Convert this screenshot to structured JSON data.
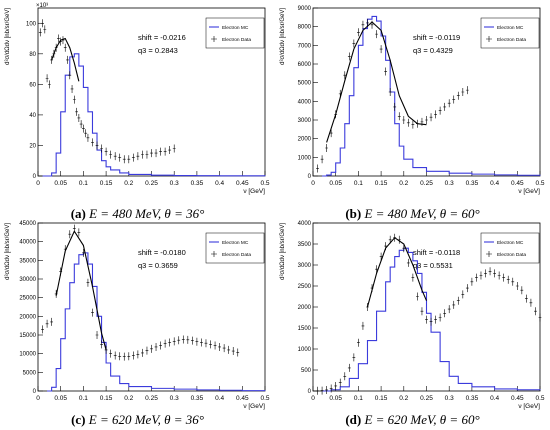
{
  "figure": {
    "legend": {
      "mc_label": "Electron MC",
      "data_label": "Electron Data"
    },
    "ylabel": "d²σ/dΩdν [nb/sr/GeV]",
    "xlabel": "ν [GeV]",
    "colors": {
      "mc": "#3b3bdc",
      "data": "#000000",
      "frame": "#000000"
    }
  },
  "panels": [
    {
      "caption": {
        "letter": "(a)",
        "text": "E = 480 MeV, θ = 36°"
      },
      "shift_text": "shift = -0.0216",
      "q3_text": "q3 = 0.2843",
      "exponent": "×10³"
    },
    {
      "caption": {
        "letter": "(b)",
        "text": "E = 480 MeV, θ = 60°"
      },
      "shift_text": "shift = -0.0119",
      "q3_text": "q3 = 0.4329",
      "exponent": ""
    },
    {
      "caption": {
        "letter": "(c)",
        "text": "E = 620 MeV, θ = 36°"
      },
      "shift_text": "shift = -0.0180",
      "q3_text": "q3 = 0.3659",
      "exponent": ""
    },
    {
      "caption": {
        "letter": "(d)",
        "text": "E = 620 MeV, θ = 60°"
      },
      "shift_text": "shift = -0.0118",
      "q3_text": "q3 = 0.5531",
      "exponent": ""
    }
  ],
  "chart_data": [
    {
      "type": "line",
      "ylim": [
        0,
        110
      ],
      "xlim": [
        0,
        0.5
      ],
      "xticks": [
        "0",
        "0.05",
        "0.1",
        "0.15",
        "0.2",
        "0.25",
        "0.3",
        "0.35",
        "0.4",
        "0.45",
        "0.5"
      ],
      "yticks": [
        0,
        20,
        40,
        60,
        80,
        100
      ],
      "series": [
        {
          "name": "Electron MC",
          "x": [
            0.01,
            0.02,
            0.03,
            0.04,
            0.05,
            0.06,
            0.07,
            0.08,
            0.09,
            0.1,
            0.11,
            0.12,
            0.13,
            0.14,
            0.15,
            0.16,
            0.18,
            0.2,
            0.25,
            0.3,
            0.35,
            0.4,
            0.45,
            0.5
          ],
          "values": [
            0,
            0,
            2,
            15,
            42,
            66,
            78,
            80,
            72,
            58,
            42,
            28,
            17,
            10,
            6,
            4,
            2,
            1,
            0.5,
            0.3,
            0.2,
            0.1,
            0.1,
            0
          ]
        },
        {
          "name": "Electron Data",
          "x": [
            0.005,
            0.01,
            0.015,
            0.02,
            0.025,
            0.03,
            0.035,
            0.04,
            0.045,
            0.05,
            0.055,
            0.06,
            0.065,
            0.07,
            0.075,
            0.08,
            0.085,
            0.09,
            0.095,
            0.1,
            0.105,
            0.11,
            0.12,
            0.13,
            0.14,
            0.15,
            0.16,
            0.17,
            0.18,
            0.19,
            0.2,
            0.21,
            0.22,
            0.23,
            0.24,
            0.25,
            0.26,
            0.27,
            0.28,
            0.29,
            0.3
          ],
          "values": [
            94,
            100,
            96,
            64,
            60,
            76,
            80,
            84,
            90,
            88,
            89,
            84,
            76,
            66,
            57,
            50,
            42,
            38,
            34,
            31,
            28,
            25,
            22,
            20,
            18,
            16,
            14,
            13,
            12,
            11,
            11,
            12,
            13,
            14,
            14,
            15,
            15,
            16,
            16,
            17,
            18
          ]
        },
        {
          "name": "",
          "x": [
            0.03,
            0.04,
            0.05,
            0.06,
            0.07,
            0.08,
            0.09
          ],
          "values": [
            76,
            84,
            89,
            90,
            84,
            74,
            62
          ]
        }
      ]
    },
    {
      "type": "line",
      "ylim": [
        0,
        9000
      ],
      "xlim": [
        0,
        0.5
      ],
      "xticks": [
        "0",
        "0.05",
        "0.1",
        "0.15",
        "0.2",
        "0.25",
        "0.3",
        "0.35",
        "0.4",
        "0.45",
        "0.5"
      ],
      "yticks": [
        0,
        1000,
        2000,
        3000,
        4000,
        5000,
        6000,
        7000,
        8000,
        9000
      ],
      "series": [
        {
          "name": "Electron MC",
          "x": [
            0.02,
            0.03,
            0.04,
            0.05,
            0.06,
            0.07,
            0.08,
            0.09,
            0.1,
            0.11,
            0.12,
            0.13,
            0.14,
            0.15,
            0.16,
            0.17,
            0.18,
            0.19,
            0.2,
            0.22,
            0.25,
            0.3,
            0.35,
            0.4,
            0.45,
            0.5
          ],
          "values": [
            0,
            50,
            200,
            700,
            1500,
            2800,
            4300,
            5800,
            7000,
            7900,
            8400,
            8550,
            8300,
            7500,
            6200,
            4500,
            2800,
            1600,
            900,
            450,
            250,
            150,
            100,
            60,
            40,
            20
          ]
        },
        {
          "name": "Electron Data",
          "x": [
            0.01,
            0.02,
            0.03,
            0.04,
            0.05,
            0.06,
            0.07,
            0.08,
            0.09,
            0.1,
            0.11,
            0.12,
            0.13,
            0.14,
            0.15,
            0.16,
            0.17,
            0.18,
            0.19,
            0.2,
            0.21,
            0.22,
            0.23,
            0.24,
            0.25,
            0.26,
            0.27,
            0.28,
            0.29,
            0.3,
            0.31,
            0.32,
            0.33,
            0.34
          ],
          "values": [
            400,
            900,
            1500,
            2300,
            3300,
            4400,
            5400,
            6400,
            7100,
            7700,
            8100,
            8200,
            8100,
            7600,
            6800,
            5600,
            4500,
            3700,
            3200,
            3000,
            2850,
            2750,
            2800,
            2900,
            3000,
            3150,
            3300,
            3500,
            3700,
            3900,
            4100,
            4300,
            4500,
            4600
          ]
        },
        {
          "name": "",
          "x": [
            0.03,
            0.05,
            0.07,
            0.09,
            0.11,
            0.13,
            0.15,
            0.17,
            0.19,
            0.21,
            0.23,
            0.25
          ],
          "values": [
            1800,
            3300,
            5100,
            6800,
            7800,
            8250,
            7800,
            6200,
            4300,
            3200,
            2800,
            2750
          ]
        }
      ]
    },
    {
      "type": "line",
      "ylim": [
        0,
        45000
      ],
      "xlim": [
        0,
        0.5
      ],
      "xticks": [
        "0",
        "0.05",
        "0.1",
        "0.15",
        "0.2",
        "0.25",
        "0.3",
        "0.35",
        "0.4",
        "0.45",
        "0.5"
      ],
      "yticks": [
        0,
        5000,
        10000,
        15000,
        20000,
        25000,
        30000,
        35000,
        40000,
        45000
      ],
      "series": [
        {
          "name": "Electron MC",
          "x": [
            0.02,
            0.03,
            0.04,
            0.05,
            0.06,
            0.07,
            0.08,
            0.09,
            0.1,
            0.11,
            0.12,
            0.13,
            0.14,
            0.15,
            0.16,
            0.18,
            0.2,
            0.25,
            0.3,
            0.35,
            0.4,
            0.45,
            0.5
          ],
          "values": [
            0,
            1000,
            6000,
            14000,
            22000,
            29000,
            34000,
            36500,
            37000,
            34000,
            28000,
            20000,
            13000,
            7500,
            4000,
            2000,
            1200,
            700,
            500,
            300,
            200,
            100,
            50
          ]
        },
        {
          "name": "Electron Data",
          "x": [
            0.01,
            0.02,
            0.03,
            0.04,
            0.05,
            0.06,
            0.07,
            0.08,
            0.09,
            0.1,
            0.11,
            0.12,
            0.13,
            0.14,
            0.15,
            0.16,
            0.17,
            0.18,
            0.19,
            0.2,
            0.21,
            0.22,
            0.23,
            0.24,
            0.25,
            0.26,
            0.27,
            0.28,
            0.29,
            0.3,
            0.31,
            0.32,
            0.33,
            0.34,
            0.35,
            0.36,
            0.37,
            0.38,
            0.39,
            0.4,
            0.41,
            0.42,
            0.43,
            0.44
          ],
          "values": [
            16500,
            18000,
            18500,
            26000,
            32000,
            38000,
            42000,
            43500,
            42500,
            37000,
            29000,
            21000,
            15000,
            12500,
            11000,
            10000,
            9500,
            9300,
            9200,
            9300,
            9500,
            9800,
            10200,
            10800,
            11300,
            11800,
            12200,
            12700,
            13000,
            13300,
            13600,
            13800,
            13700,
            13500,
            13200,
            13000,
            12800,
            12500,
            12200,
            11800,
            11500,
            11000,
            10700,
            10300
          ]
        },
        {
          "name": "",
          "x": [
            0.04,
            0.06,
            0.08,
            0.1,
            0.12,
            0.14,
            0.15
          ],
          "values": [
            25500,
            37500,
            42800,
            39000,
            28000,
            15500,
            11000
          ]
        }
      ]
    },
    {
      "type": "line",
      "ylim": [
        0,
        4000
      ],
      "xlim": [
        0,
        0.5
      ],
      "xticks": [
        "0",
        "0.05",
        "0.1",
        "0.15",
        "0.2",
        "0.25",
        "0.3",
        "0.35",
        "0.4",
        "0.45",
        "0.5"
      ],
      "yticks": [
        0,
        500,
        1000,
        1500,
        2000,
        2500,
        3000,
        3500,
        4000
      ],
      "series": [
        {
          "name": "Electron MC",
          "x": [
            0.02,
            0.04,
            0.06,
            0.08,
            0.1,
            0.12,
            0.14,
            0.16,
            0.17,
            0.18,
            0.19,
            0.2,
            0.21,
            0.22,
            0.23,
            0.24,
            0.25,
            0.26,
            0.28,
            0.3,
            0.32,
            0.35,
            0.4,
            0.45,
            0.5
          ],
          "values": [
            0,
            30,
            100,
            300,
            650,
            1200,
            1900,
            2600,
            2950,
            3200,
            3350,
            3400,
            3300,
            3100,
            2800,
            2350,
            1850,
            1400,
            700,
            350,
            180,
            100,
            50,
            30,
            20
          ]
        },
        {
          "name": "Electron Data",
          "x": [
            0.01,
            0.02,
            0.03,
            0.04,
            0.05,
            0.06,
            0.07,
            0.08,
            0.09,
            0.1,
            0.11,
            0.12,
            0.13,
            0.14,
            0.15,
            0.16,
            0.17,
            0.18,
            0.19,
            0.2,
            0.21,
            0.22,
            0.23,
            0.24,
            0.25,
            0.26,
            0.27,
            0.28,
            0.29,
            0.3,
            0.31,
            0.32,
            0.33,
            0.34,
            0.35,
            0.36,
            0.37,
            0.38,
            0.39,
            0.4,
            0.41,
            0.42,
            0.43,
            0.44,
            0.45,
            0.46,
            0.47,
            0.48,
            0.49,
            0.5
          ],
          "values": [
            5,
            10,
            25,
            60,
            120,
            200,
            350,
            550,
            800,
            1150,
            1550,
            2000,
            2450,
            2900,
            3200,
            3450,
            3600,
            3650,
            3600,
            3400,
            3050,
            2700,
            2250,
            1900,
            1700,
            1650,
            1700,
            1750,
            1850,
            1950,
            2050,
            2150,
            2300,
            2450,
            2600,
            2700,
            2750,
            2800,
            2850,
            2800,
            2750,
            2700,
            2650,
            2600,
            2500,
            2400,
            2200,
            2100,
            1900,
            1750
          ]
        },
        {
          "name": "",
          "x": [
            0.12,
            0.14,
            0.16,
            0.18,
            0.2,
            0.22,
            0.24,
            0.25
          ],
          "values": [
            2000,
            2800,
            3400,
            3650,
            3500,
            3000,
            2400,
            2150
          ]
        }
      ]
    }
  ]
}
